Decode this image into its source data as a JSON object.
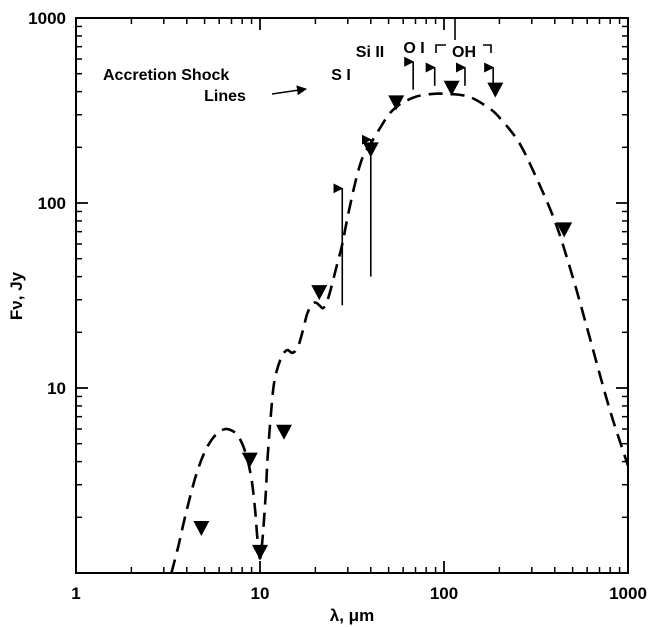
{
  "chart_data": {
    "type": "line",
    "xscale": "log",
    "yscale": "log",
    "xlim": [
      1,
      1000
    ],
    "ylim": [
      1,
      1000
    ],
    "x_tick_labels": [
      "1",
      "10",
      "100",
      "1000"
    ],
    "y_tick_labels": [
      "10",
      "100",
      "1000"
    ],
    "xlabel": "λ, μm",
    "ylabel": "Fν, Jy",
    "grid": false,
    "legend": "none",
    "model_curve": {
      "style": "dashed",
      "x": [
        3.3,
        3.6,
        4,
        4.5,
        5,
        5.5,
        6,
        6.5,
        7,
        7.5,
        8,
        8.5,
        9,
        9.4,
        9.7,
        10,
        10.3,
        10.7,
        11,
        11.5,
        12,
        13,
        14,
        15,
        16,
        17,
        18,
        19,
        20,
        21,
        22,
        23,
        24,
        26,
        28,
        30,
        33,
        36,
        40,
        45,
        50,
        55,
        60,
        70,
        80,
        90,
        100,
        110,
        130,
        150,
        180,
        200,
        250,
        300,
        400,
        500,
        600,
        700,
        800,
        900,
        1000
      ],
      "y": [
        1,
        1.4,
        2.2,
        3.4,
        4.5,
        5.3,
        5.8,
        6,
        5.9,
        5.6,
        5,
        4.2,
        3.2,
        2.2,
        1.5,
        1.2,
        1.5,
        2.5,
        4.2,
        7.5,
        11,
        14.5,
        16,
        15.5,
        16.5,
        20,
        25,
        28,
        29,
        28,
        27,
        29,
        33,
        45,
        60,
        85,
        130,
        175,
        210,
        255,
        300,
        330,
        350,
        375,
        385,
        390,
        390,
        388,
        380,
        360,
        320,
        290,
        220,
        155,
        80,
        40,
        21,
        12,
        7.5,
        5.2,
        3.8
      ]
    },
    "observed_points": {
      "marker": "inverted-triangle",
      "x": [
        4.8,
        8.8,
        10,
        13.5,
        21,
        40,
        55,
        110,
        190,
        450
      ],
      "y": [
        1.75,
        4.1,
        1.3,
        5.8,
        33,
        195,
        350,
        420,
        410,
        72
      ]
    },
    "annotations": {
      "accretion_label_line1": "Accretion Shock",
      "accretion_label_line2": "Lines",
      "lines": [
        {
          "label": "S I",
          "x": 28,
          "y_from": 120,
          "y_to": 28
        },
        {
          "label": "Si II",
          "x": 40,
          "y_from": 220,
          "y_to": 40
        },
        {
          "label": "O I",
          "x": 68,
          "y_from": 580,
          "y_to": 410
        },
        {
          "label": "OH",
          "x": 89,
          "y_from": 540,
          "y_to": 430
        },
        {
          "label": "",
          "x": 130,
          "y_from": 540,
          "y_to": 430
        },
        {
          "label": "",
          "x": 185,
          "y_from": 540,
          "y_to": 430
        }
      ]
    }
  }
}
